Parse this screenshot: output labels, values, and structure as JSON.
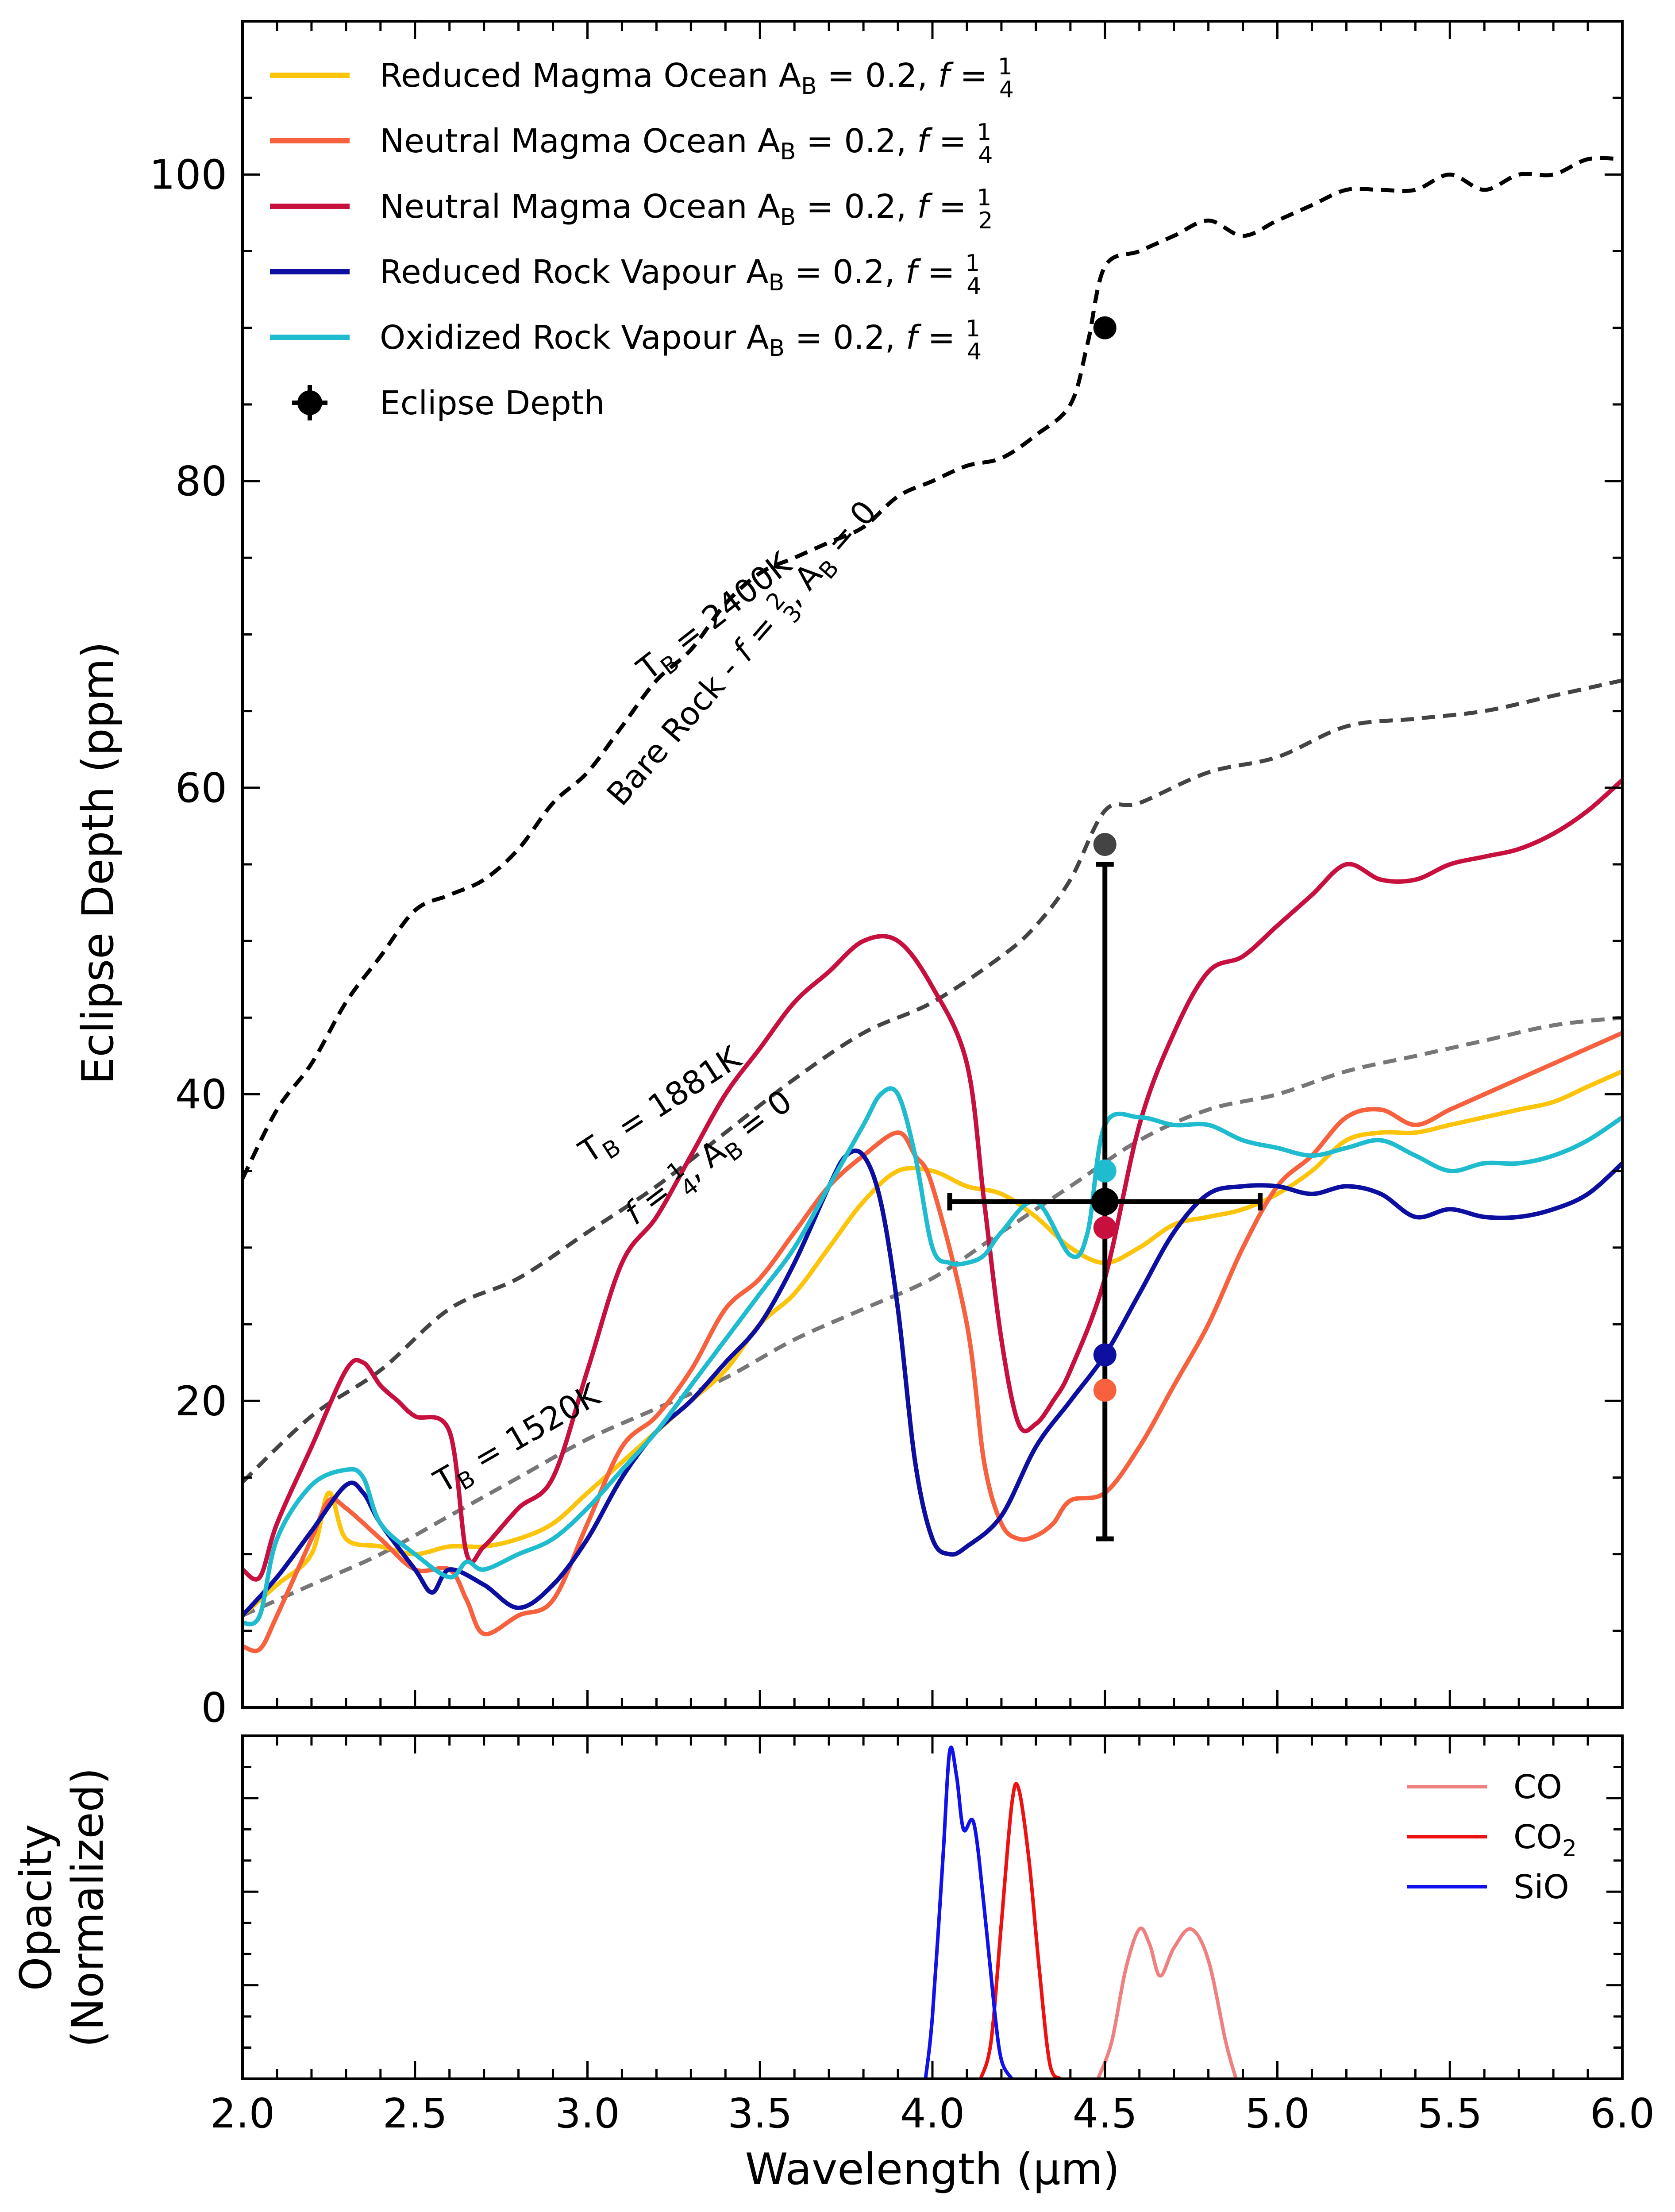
{
  "figure": {
    "top_panel": {
      "ylabel": "Eclipse Depth (ppm)",
      "xlim": [
        2.0,
        6.0
      ],
      "ylim": [
        0,
        110
      ],
      "yticks": [
        "0",
        "20",
        "40",
        "60",
        "80",
        "100"
      ],
      "xtick_labels_shown": false
    },
    "bottom_panel": {
      "ylabel_line1": "Opacity",
      "ylabel_line2": "(Normalized)",
      "xlabel": "Wavelength (μm)",
      "xticks": [
        "2.0",
        "2.5",
        "3.0",
        "3.5",
        "4.0",
        "4.5",
        "5.0",
        "5.5",
        "6.0"
      ]
    },
    "legend_top": [
      {
        "base": "Reduced Magma Ocean A",
        "sub": "B",
        "rest": " = 0.2, ",
        "f": "f",
        "num": "1",
        "den": "4",
        "color": "#FCC40A"
      },
      {
        "base": "Neutral Magma Ocean A",
        "sub": "B",
        "rest": " = 0.2, ",
        "f": "f",
        "num": "1",
        "den": "4",
        "color": "#F7613D"
      },
      {
        "base": "Neutral Magma Ocean A",
        "sub": "B",
        "rest": " = 0.2, ",
        "f": "f",
        "num": "1",
        "den": "2",
        "color": "#C8103E"
      },
      {
        "base": "Reduced Rock Vapour A",
        "sub": "B",
        "rest": " = 0.2, ",
        "f": "f",
        "num": "1",
        "den": "4",
        "color": "#0D0FA1"
      },
      {
        "base": "Oxidized Rock Vapour A",
        "sub": "B",
        "rest": " = 0.2, ",
        "f": "f",
        "num": "1",
        "den": "4",
        "color": "#1FBCD0"
      },
      {
        "base": "Eclipse Depth",
        "sub": "",
        "rest": "",
        "f": "",
        "num": "",
        "den": "",
        "color": "#000000"
      }
    ],
    "legend_bottom": [
      {
        "label": "CO",
        "sub": "",
        "color": "#F08080"
      },
      {
        "label": "CO",
        "sub": "2",
        "color": "#EE1111"
      },
      {
        "label": "SiO",
        "sub": "",
        "color": "#1111EE"
      }
    ],
    "annotations": {
      "bare_rock_temp": {
        "pre": "T",
        "sub": "B",
        "post": " = 2400K"
      },
      "bare_rock_desc": {
        "pre": "Bare Rock - ",
        "f": "f",
        "num": "2",
        "den": "3",
        "mid": ", A",
        "sub": "B",
        "post": " = 0"
      },
      "mid_temp": {
        "pre": "T",
        "sub": "B",
        "post": " = 1881K"
      },
      "mid_desc": {
        "f": "f",
        "num": "1",
        "den": "4",
        "mid": ", A",
        "sub": "B",
        "post": " = 0"
      },
      "low_temp": {
        "pre": "T",
        "sub": "B",
        "post": " = 1520K"
      }
    }
  },
  "chart_data": [
    {
      "type": "line",
      "title": "",
      "ylabel": "Eclipse Depth (ppm)",
      "xlim": [
        2.0,
        6.0
      ],
      "ylim": [
        0,
        110
      ],
      "series": [
        {
          "name": "Bare Rock - f=2/3, A_B=0 (T_B = 2400K)",
          "style": "dashed",
          "color": "#000000",
          "x": [
            2.0,
            2.1,
            2.2,
            2.3,
            2.4,
            2.5,
            2.6,
            2.7,
            2.8,
            2.9,
            3.0,
            3.1,
            3.2,
            3.3,
            3.4,
            3.5,
            3.6,
            3.7,
            3.8,
            3.9,
            4.0,
            4.1,
            4.2,
            4.3,
            4.4,
            4.45,
            4.5,
            4.6,
            4.7,
            4.8,
            4.9,
            5.0,
            5.1,
            5.2,
            5.3,
            5.4,
            5.5,
            5.6,
            5.7,
            5.8,
            5.9,
            6.0
          ],
          "y": [
            34.5,
            39,
            42,
            46,
            49,
            52,
            53,
            54,
            56,
            59,
            61,
            64,
            67,
            69,
            72,
            74,
            75,
            76,
            77,
            79,
            80,
            81,
            81.5,
            83,
            85,
            89,
            94,
            95,
            96,
            97,
            96,
            97,
            98,
            99,
            99,
            99,
            100,
            99,
            100,
            100,
            101,
            101
          ]
        },
        {
          "name": "f=1/4, A_B=0 (T_B = 1881K)",
          "style": "dashed",
          "color": "#444444",
          "x": [
            2.0,
            2.2,
            2.4,
            2.6,
            2.8,
            3.0,
            3.2,
            3.4,
            3.6,
            3.8,
            4.0,
            4.2,
            4.3,
            4.4,
            4.5,
            4.6,
            4.8,
            5.0,
            5.2,
            5.4,
            5.6,
            5.8,
            6.0
          ],
          "y": [
            14.7,
            19,
            22,
            26,
            28,
            31,
            34,
            37.5,
            41,
            44,
            46,
            49,
            51,
            54,
            58.5,
            59,
            61,
            62,
            64,
            64.5,
            65,
            66,
            67
          ]
        },
        {
          "name": "T_B = 1520K",
          "style": "dashed",
          "color": "#777777",
          "x": [
            2.0,
            2.2,
            2.4,
            2.6,
            2.8,
            3.0,
            3.2,
            3.4,
            3.6,
            3.8,
            4.0,
            4.2,
            4.4,
            4.6,
            4.8,
            5.0,
            5.2,
            5.4,
            5.6,
            5.8,
            6.0
          ],
          "y": [
            6,
            8,
            10,
            12.5,
            15,
            17.5,
            19.5,
            21.5,
            24,
            26,
            28,
            31,
            34,
            37,
            39,
            40,
            41.5,
            42.5,
            43.5,
            44.5,
            45
          ]
        },
        {
          "name": "Reduced Magma Ocean A_B = 0.2, f = 1/4",
          "color": "#FCC40A",
          "x": [
            2.0,
            2.1,
            2.2,
            2.25,
            2.3,
            2.4,
            2.5,
            2.6,
            2.7,
            2.8,
            2.9,
            3.0,
            3.1,
            3.2,
            3.3,
            3.4,
            3.5,
            3.6,
            3.7,
            3.8,
            3.9,
            4.0,
            4.1,
            4.2,
            4.3,
            4.4,
            4.5,
            4.6,
            4.7,
            4.8,
            4.9,
            5.0,
            5.1,
            5.2,
            5.3,
            5.4,
            5.5,
            5.6,
            5.7,
            5.8,
            5.9,
            6.0
          ],
          "y": [
            6,
            8,
            10,
            14,
            11,
            10.5,
            10,
            10.5,
            10.5,
            11,
            12,
            14,
            16,
            18,
            20,
            22,
            25,
            27,
            30,
            33,
            35,
            35,
            34,
            33.5,
            32,
            30,
            29,
            30,
            31.5,
            32,
            32.5,
            33.5,
            35,
            37,
            37.5,
            37.5,
            38,
            38.5,
            39,
            39.5,
            40.5,
            41.5
          ]
        },
        {
          "name": "Neutral Magma Ocean A_B = 0.2, f = 1/4",
          "color": "#F7613D",
          "x": [
            2.0,
            2.05,
            2.1,
            2.2,
            2.25,
            2.3,
            2.4,
            2.5,
            2.6,
            2.65,
            2.7,
            2.8,
            2.9,
            3.0,
            3.1,
            3.2,
            3.3,
            3.4,
            3.5,
            3.6,
            3.7,
            3.8,
            3.9,
            3.95,
            4.0,
            4.1,
            4.15,
            4.2,
            4.25,
            4.3,
            4.35,
            4.4,
            4.5,
            4.6,
            4.7,
            4.8,
            4.9,
            5.0,
            5.1,
            5.2,
            5.3,
            5.4,
            5.5,
            5.6,
            5.7,
            5.8,
            5.9,
            6.0
          ],
          "y": [
            4,
            3.8,
            6,
            11,
            13.5,
            13,
            11,
            9,
            9,
            7,
            4.8,
            6,
            7,
            12,
            17,
            19,
            22,
            26,
            28,
            31,
            34,
            36,
            37.5,
            36,
            34,
            25,
            16,
            12,
            11,
            11.2,
            12,
            13.5,
            14,
            17,
            21,
            25,
            30,
            34,
            36,
            38.5,
            39,
            38,
            39,
            40,
            41,
            42,
            43,
            44
          ]
        },
        {
          "name": "Neutral Magma Ocean A_B = 0.2, f = 1/2",
          "color": "#C8103E",
          "x": [
            2.0,
            2.05,
            2.1,
            2.2,
            2.3,
            2.35,
            2.4,
            2.45,
            2.5,
            2.6,
            2.65,
            2.7,
            2.8,
            2.9,
            3.0,
            3.1,
            3.2,
            3.3,
            3.4,
            3.5,
            3.6,
            3.7,
            3.8,
            3.9,
            4.0,
            4.1,
            4.15,
            4.2,
            4.25,
            4.3,
            4.35,
            4.4,
            4.5,
            4.6,
            4.7,
            4.8,
            4.9,
            5.0,
            5.1,
            5.2,
            5.3,
            5.4,
            5.5,
            5.6,
            5.7,
            5.8,
            5.9,
            6.0
          ],
          "y": [
            9,
            8.5,
            12,
            17,
            22,
            22.5,
            21,
            20,
            19,
            18,
            10,
            10.5,
            13,
            15,
            22,
            29,
            32,
            36,
            40,
            43,
            46,
            48,
            50,
            50,
            47,
            42,
            33,
            24,
            18.5,
            18.5,
            20,
            22,
            28,
            38,
            44,
            48,
            49,
            51,
            53,
            55,
            54,
            54,
            55,
            55.5,
            56,
            57,
            58.5,
            60.5
          ]
        },
        {
          "name": "Reduced Rock Vapour A_B = 0.2, f = 1/4",
          "color": "#0D0FA1",
          "x": [
            2.0,
            2.1,
            2.2,
            2.3,
            2.35,
            2.4,
            2.5,
            2.55,
            2.6,
            2.7,
            2.8,
            2.9,
            3.0,
            3.1,
            3.2,
            3.3,
            3.4,
            3.5,
            3.6,
            3.7,
            3.75,
            3.8,
            3.85,
            3.9,
            3.95,
            4.0,
            4.05,
            4.1,
            4.2,
            4.3,
            4.4,
            4.5,
            4.6,
            4.7,
            4.8,
            4.9,
            5.0,
            5.1,
            5.2,
            5.3,
            5.4,
            5.5,
            5.6,
            5.7,
            5.8,
            5.9,
            6.0
          ],
          "y": [
            6,
            8.5,
            11.5,
            14.5,
            14,
            12,
            9,
            7.5,
            9,
            8,
            6.5,
            8,
            11,
            15,
            18,
            20,
            22.5,
            25,
            29,
            34,
            36,
            36,
            33,
            26,
            16,
            11,
            10,
            10.5,
            12.5,
            17,
            20,
            23,
            27,
            31,
            33.5,
            34,
            34,
            33.5,
            34,
            33.5,
            32,
            32.5,
            32,
            32,
            32.5,
            33.5,
            35.5
          ]
        },
        {
          "name": "Oxidized Rock Vapour A_B = 0.2, f = 1/4",
          "color": "#1FBCD0",
          "x": [
            2.0,
            2.05,
            2.1,
            2.2,
            2.3,
            2.35,
            2.4,
            2.5,
            2.6,
            2.65,
            2.7,
            2.8,
            2.9,
            3.0,
            3.1,
            3.2,
            3.3,
            3.4,
            3.5,
            3.6,
            3.7,
            3.8,
            3.85,
            3.9,
            3.95,
            4.0,
            4.05,
            4.1,
            4.15,
            4.2,
            4.3,
            4.4,
            4.45,
            4.5,
            4.6,
            4.7,
            4.8,
            4.9,
            5.0,
            5.1,
            5.2,
            5.3,
            5.4,
            5.5,
            5.6,
            5.7,
            5.8,
            5.9,
            6.0
          ],
          "y": [
            5.5,
            6,
            11,
            14.5,
            15.5,
            15,
            12,
            10,
            8.5,
            9.5,
            9,
            10,
            11,
            13,
            15.5,
            18,
            21,
            24,
            27,
            30,
            34,
            38,
            40,
            40,
            36,
            30,
            29,
            29,
            29.5,
            31,
            33,
            29.5,
            31,
            38,
            38.5,
            38,
            38,
            37,
            36.5,
            36,
            36.5,
            37,
            36,
            35,
            35.5,
            35.5,
            36,
            37,
            38.5
          ]
        }
      ],
      "points": [
        {
          "x": 4.5,
          "y": 90,
          "color": "#000000"
        },
        {
          "x": 4.5,
          "y": 56.3,
          "color": "#444444"
        },
        {
          "x": 4.5,
          "y": 35,
          "color": "#1FBCD0"
        },
        {
          "x": 4.5,
          "y": 31.3,
          "color": "#C8103E"
        },
        {
          "x": 4.5,
          "y": 23,
          "color": "#0D0FA1"
        },
        {
          "x": 4.5,
          "y": 20.7,
          "color": "#F7613D"
        }
      ],
      "measurement": {
        "label": "Eclipse Depth",
        "x": 4.5,
        "y": 33,
        "xerr": [
          4.05,
          4.95
        ],
        "yerr": [
          11,
          55
        ]
      }
    },
    {
      "type": "line",
      "title": "",
      "xlabel": "Wavelength (μm)",
      "ylabel": "Opacity (Normalized)",
      "xlim": [
        2.0,
        6.0
      ],
      "ylim": [
        0,
        1.1
      ],
      "series": [
        {
          "name": "CO",
          "color": "#F08080",
          "x": [
            4.48,
            4.52,
            4.56,
            4.6,
            4.63,
            4.66,
            4.7,
            4.75,
            4.8,
            4.85,
            4.88
          ],
          "y": [
            0,
            0.12,
            0.35,
            0.48,
            0.43,
            0.33,
            0.42,
            0.48,
            0.38,
            0.12,
            0
          ]
        },
        {
          "name": "CO2",
          "color": "#EE1111",
          "x": [
            4.14,
            4.17,
            4.2,
            4.23,
            4.25,
            4.28,
            4.31,
            4.34,
            4.37
          ],
          "y": [
            0,
            0.12,
            0.5,
            0.88,
            0.93,
            0.7,
            0.35,
            0.05,
            0
          ]
        },
        {
          "name": "SiO",
          "color": "#1111EE",
          "x": [
            3.98,
            4.0,
            4.03,
            4.05,
            4.07,
            4.09,
            4.12,
            4.15,
            4.18,
            4.2,
            4.23
          ],
          "y": [
            0,
            0.2,
            0.7,
            1.05,
            0.97,
            0.8,
            0.82,
            0.55,
            0.22,
            0.06,
            0
          ]
        }
      ]
    }
  ]
}
